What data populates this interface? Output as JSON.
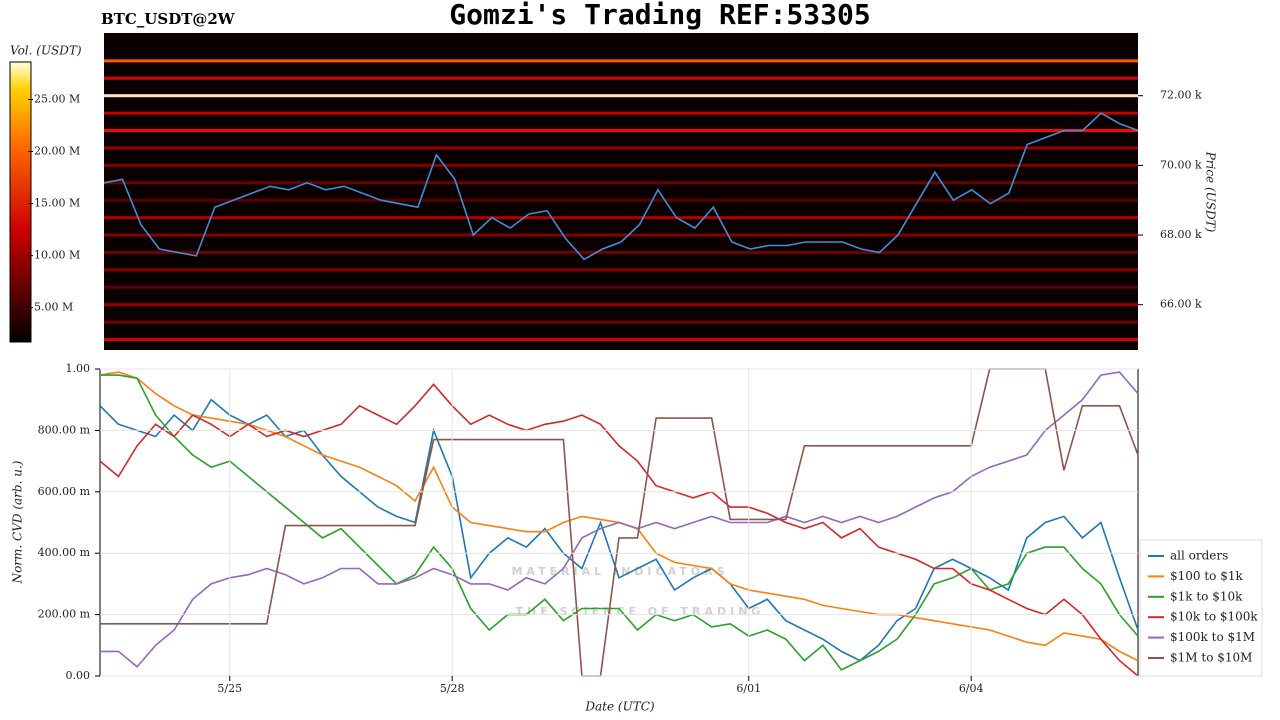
{
  "title": "Gomzi's Trading REF:53305",
  "watermark": {
    "name": "MATERIAL INDICATORS",
    "tagline": "THE SCIENCE OF TRADING"
  },
  "chart_data": [
    {
      "type": "heatmap",
      "title": "BTC_USDT@2W",
      "ylabel": "Price (USDT)",
      "ylim": [
        64700,
        73800
      ],
      "yticks": [
        {
          "value": 66000,
          "label": "66.00 k"
        },
        {
          "value": 68000,
          "label": "68.00 k"
        },
        {
          "value": 70000,
          "label": "70.00 k"
        },
        {
          "value": 72000,
          "label": "72.00 k"
        }
      ],
      "colorbar": {
        "label": "Vol. (USDT)",
        "lim": [
          1700000,
          28600000
        ],
        "ticks": [
          {
            "value": 5000000,
            "label": "5.00 M"
          },
          {
            "value": 10000000,
            "label": "10.00 M"
          },
          {
            "value": 15000000,
            "label": "15.00 M"
          },
          {
            "value": 20000000,
            "label": "20.00 M"
          },
          {
            "value": 25000000,
            "label": "25.00 M"
          }
        ]
      },
      "levels": [
        {
          "price": 73000,
          "volume": 18000000
        },
        {
          "price": 72500,
          "volume": 12000000
        },
        {
          "price": 72000,
          "volume": 28000000
        },
        {
          "price": 71500,
          "volume": 11000000
        },
        {
          "price": 71000,
          "volume": 14000000
        },
        {
          "price": 70500,
          "volume": 9000000
        },
        {
          "price": 70000,
          "volume": 8000000
        },
        {
          "price": 69500,
          "volume": 7000000
        },
        {
          "price": 69000,
          "volume": 6000000
        },
        {
          "price": 68500,
          "volume": 10000000
        },
        {
          "price": 68000,
          "volume": 8000000
        },
        {
          "price": 67500,
          "volume": 7000000
        },
        {
          "price": 67000,
          "volume": 8000000
        },
        {
          "price": 66500,
          "volume": 6000000
        },
        {
          "price": 66000,
          "volume": 9000000
        },
        {
          "price": 65500,
          "volume": 7000000
        },
        {
          "price": 65000,
          "volume": 12000000
        }
      ],
      "color": "#3d8fd6",
      "values": [
        69500,
        69600,
        68300,
        67600,
        67500,
        67400,
        68800,
        69000,
        69200,
        69400,
        69300,
        69500,
        69300,
        69400,
        69200,
        69000,
        68900,
        68800,
        70300,
        69600,
        68000,
        68500,
        68200,
        68600,
        68700,
        67900,
        67300,
        67600,
        67800,
        68300,
        69300,
        68500,
        68200,
        68800,
        67800,
        67600,
        67700,
        67700,
        67800,
        67800,
        67800,
        67600,
        67500,
        68000,
        68900,
        69800,
        69000,
        69300,
        68900,
        69200,
        70600,
        70800,
        71000,
        71000,
        71500,
        71200,
        71000
      ]
    },
    {
      "type": "line",
      "xlabel": "Date (UTC)",
      "ylabel": "Norm. CVD (arb. u.)",
      "grid": true,
      "legend": "right",
      "categories": [
        null,
        null,
        null,
        null,
        null,
        null,
        null,
        "5/25",
        null,
        null,
        null,
        null,
        null,
        null,
        null,
        null,
        null,
        null,
        null,
        "5/28",
        null,
        null,
        null,
        null,
        null,
        null,
        null,
        null,
        null,
        null,
        null,
        null,
        null,
        null,
        null,
        "6/01",
        null,
        null,
        null,
        null,
        null,
        null,
        null,
        null,
        null,
        null,
        null,
        "6/04",
        null,
        null,
        null,
        null,
        null,
        null,
        null,
        null,
        null
      ],
      "ylim": [
        0,
        1
      ],
      "yticks": [
        {
          "value": 0,
          "label": "0.00"
        },
        {
          "value": 0.2,
          "label": "200.00 m"
        },
        {
          "value": 0.4,
          "label": "400.00 m"
        },
        {
          "value": 0.6,
          "label": "600.00 m"
        },
        {
          "value": 0.8,
          "label": "800.00 m"
        },
        {
          "value": 1,
          "label": "1.00"
        }
      ],
      "series": [
        {
          "name": "all orders",
          "color": "#1f77b4",
          "values": [
            0.88,
            0.82,
            0.8,
            0.78,
            0.85,
            0.8,
            0.9,
            0.85,
            0.82,
            0.85,
            0.78,
            0.8,
            0.72,
            0.65,
            0.6,
            0.55,
            0.52,
            0.5,
            0.8,
            0.65,
            0.32,
            0.4,
            0.45,
            0.42,
            0.48,
            0.4,
            0.35,
            0.5,
            0.32,
            0.35,
            0.38,
            0.28,
            0.32,
            0.35,
            0.3,
            0.22,
            0.25,
            0.18,
            0.15,
            0.12,
            0.08,
            0.05,
            0.1,
            0.18,
            0.22,
            0.35,
            0.38,
            0.35,
            0.32,
            0.28,
            0.45,
            0.5,
            0.52,
            0.45,
            0.5,
            0.32,
            0.15
          ]
        },
        {
          "name": "$100 to $1k",
          "color": "#ff7f0e",
          "values": [
            0.98,
            0.99,
            0.97,
            0.92,
            0.88,
            0.85,
            0.84,
            0.83,
            0.82,
            0.8,
            0.78,
            0.75,
            0.72,
            0.7,
            0.68,
            0.65,
            0.62,
            0.57,
            0.68,
            0.55,
            0.5,
            0.49,
            0.48,
            0.47,
            0.47,
            0.5,
            0.52,
            0.51,
            0.5,
            0.48,
            0.4,
            0.37,
            0.36,
            0.35,
            0.3,
            0.28,
            0.27,
            0.26,
            0.25,
            0.23,
            0.22,
            0.21,
            0.2,
            0.2,
            0.19,
            0.18,
            0.17,
            0.16,
            0.15,
            0.13,
            0.11,
            0.1,
            0.14,
            0.13,
            0.12,
            0.08,
            0.05
          ]
        },
        {
          "name": "$1k to $10k",
          "color": "#2ca02c",
          "values": [
            0.98,
            0.98,
            0.97,
            0.85,
            0.78,
            0.72,
            0.68,
            0.7,
            0.65,
            0.6,
            0.55,
            0.5,
            0.45,
            0.48,
            0.42,
            0.36,
            0.3,
            0.33,
            0.42,
            0.35,
            0.22,
            0.15,
            0.2,
            0.2,
            0.25,
            0.18,
            0.22,
            0.22,
            0.22,
            0.15,
            0.2,
            0.18,
            0.2,
            0.16,
            0.17,
            0.13,
            0.15,
            0.12,
            0.05,
            0.1,
            0.02,
            0.05,
            0.08,
            0.12,
            0.2,
            0.3,
            0.32,
            0.35,
            0.28,
            0.3,
            0.4,
            0.42,
            0.42,
            0.35,
            0.3,
            0.2,
            0.13
          ]
        },
        {
          "name": "$10k to $100k",
          "color": "#d62728",
          "values": [
            0.7,
            0.65,
            0.75,
            0.82,
            0.78,
            0.85,
            0.82,
            0.78,
            0.82,
            0.78,
            0.8,
            0.78,
            0.8,
            0.82,
            0.88,
            0.85,
            0.82,
            0.88,
            0.95,
            0.88,
            0.82,
            0.85,
            0.82,
            0.8,
            0.82,
            0.83,
            0.85,
            0.82,
            0.75,
            0.7,
            0.62,
            0.6,
            0.58,
            0.6,
            0.55,
            0.55,
            0.53,
            0.5,
            0.48,
            0.5,
            0.45,
            0.48,
            0.42,
            0.4,
            0.38,
            0.35,
            0.35,
            0.3,
            0.28,
            0.25,
            0.22,
            0.2,
            0.25,
            0.2,
            0.12,
            0.05,
            0.0
          ]
        },
        {
          "name": "$100k to $1M",
          "color": "#9467bd",
          "values": [
            0.08,
            0.08,
            0.03,
            0.1,
            0.15,
            0.25,
            0.3,
            0.32,
            0.33,
            0.35,
            0.33,
            0.3,
            0.32,
            0.35,
            0.35,
            0.3,
            0.3,
            0.32,
            0.35,
            0.33,
            0.3,
            0.3,
            0.28,
            0.32,
            0.3,
            0.35,
            0.45,
            0.48,
            0.5,
            0.48,
            0.5,
            0.48,
            0.5,
            0.52,
            0.5,
            0.5,
            0.5,
            0.52,
            0.5,
            0.52,
            0.5,
            0.52,
            0.5,
            0.52,
            0.55,
            0.58,
            0.6,
            0.65,
            0.68,
            0.7,
            0.72,
            0.8,
            0.85,
            0.9,
            0.98,
            0.99,
            0.92
          ]
        },
        {
          "name": "$1M to $10M",
          "color": "#8c564b",
          "values": [
            0.17,
            0.17,
            0.17,
            0.17,
            0.17,
            0.17,
            0.17,
            0.17,
            0.17,
            0.17,
            0.49,
            0.49,
            0.49,
            0.49,
            0.49,
            0.49,
            0.49,
            0.49,
            0.77,
            0.77,
            0.77,
            0.77,
            0.77,
            0.77,
            0.77,
            0.77,
            0,
            0,
            0.45,
            0.45,
            0.84,
            0.84,
            0.84,
            0.84,
            0.51,
            0.51,
            0.51,
            0.51,
            0.75,
            0.75,
            0.75,
            0.75,
            0.75,
            0.75,
            0.75,
            0.75,
            0.75,
            0.75,
            1,
            1,
            1,
            1,
            0.67,
            0.88,
            0.88,
            0.88,
            0.72
          ]
        }
      ]
    }
  ]
}
